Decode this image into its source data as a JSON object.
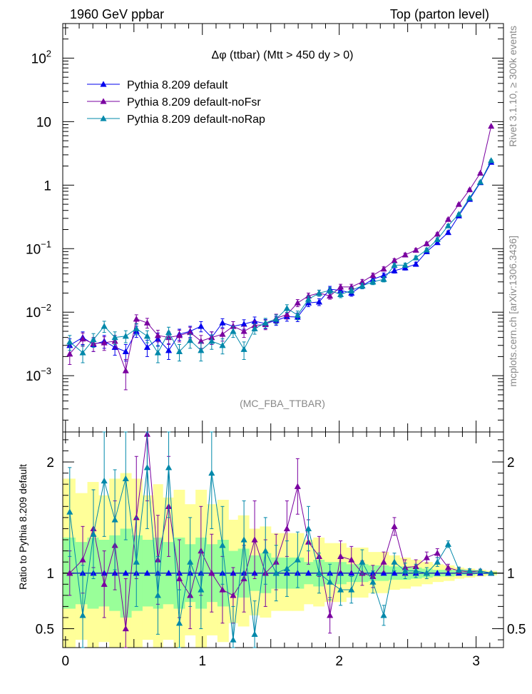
{
  "header": {
    "left": "1960 GeV ppbar",
    "right": "Top (parton level)",
    "plot_title": "Δφ (ttbar) (Mtt > 450 dy > 0)",
    "analysis_tag": "(MC_FBA_TTBAR)",
    "side_rivet": "Rivet 3.1.10, ≥ 300k events",
    "side_mcplots": "mcplots.cern.ch [arXiv:1306.3436]"
  },
  "colors": {
    "default": "#0000ee",
    "noFsr": "#7a00a0",
    "noRap": "#0088aa",
    "band_outer": "#ffff99",
    "band_inner": "#99ff99"
  },
  "chart_data": [
    {
      "type": "line",
      "panel": "main",
      "title": "Δφ (ttbar) (Mtt > 450 dy > 0)",
      "xlabel": "",
      "ylabel": "",
      "y_scale": "log",
      "xlim": [
        -0.02,
        3.2
      ],
      "ylim": [
        0.00013,
        350
      ],
      "y_ticks": [
        {
          "v": 0.001,
          "base": "10",
          "exp": "−3"
        },
        {
          "v": 0.01,
          "base": "10",
          "exp": "−2"
        },
        {
          "v": 0.1,
          "base": "10",
          "exp": "−1"
        },
        {
          "v": 1,
          "base": "1",
          "exp": ""
        },
        {
          "v": 10,
          "base": "10",
          "exp": ""
        },
        {
          "v": 100,
          "base": "10",
          "exp": "2"
        }
      ],
      "legend_position": "top-left",
      "series": [
        {
          "name": "Pythia 8.209 default",
          "color": "#0000ee",
          "x": [
            0.031,
            0.126,
            0.204,
            0.283,
            0.361,
            0.44,
            0.518,
            0.597,
            0.675,
            0.754,
            0.832,
            0.911,
            0.99,
            1.068,
            1.147,
            1.225,
            1.304,
            1.382,
            1.461,
            1.539,
            1.618,
            1.696,
            1.775,
            1.853,
            1.932,
            2.01,
            2.089,
            2.168,
            2.246,
            2.325,
            2.403,
            2.482,
            2.56,
            2.639,
            2.717,
            2.796,
            2.874,
            2.953,
            3.031,
            3.11
          ],
          "y": [
            0.003,
            0.004,
            0.0031,
            0.0035,
            0.0028,
            0.0024,
            0.005,
            0.0028,
            0.0038,
            0.0025,
            0.0045,
            0.005,
            0.006,
            0.004,
            0.0068,
            0.006,
            0.0065,
            0.0072,
            0.0066,
            0.0074,
            0.0085,
            0.0084,
            0.014,
            0.0145,
            0.023,
            0.022,
            0.02,
            0.026,
            0.033,
            0.038,
            0.045,
            0.05,
            0.057,
            0.09,
            0.125,
            0.18,
            0.33,
            0.6,
            1.1,
            2.3
          ],
          "err": [
            0.0008,
            0.0009,
            0.0007,
            0.0008,
            0.0007,
            0.0007,
            0.001,
            0.0008,
            0.0009,
            0.0007,
            0.0009,
            0.001,
            0.0011,
            0.0009,
            0.0011,
            0.0011,
            0.0011,
            0.0012,
            0.0011,
            0.0012,
            0.0013,
            0.0013,
            0.0018,
            0.0018,
            0.0025,
            0.0024,
            0.0022,
            0.0027,
            0.0031,
            0.0034,
            0.0038,
            0.004,
            0.0043,
            0.006,
            0.007,
            0.009,
            0.013,
            0.02,
            0.03,
            0.05
          ]
        },
        {
          "name": "Pythia 8.209 default-noFsr",
          "color": "#7a00a0",
          "x": [
            0.031,
            0.126,
            0.204,
            0.283,
            0.361,
            0.44,
            0.518,
            0.597,
            0.675,
            0.754,
            0.832,
            0.911,
            0.99,
            1.068,
            1.147,
            1.225,
            1.304,
            1.382,
            1.461,
            1.539,
            1.618,
            1.696,
            1.775,
            1.853,
            1.932,
            2.01,
            2.089,
            2.168,
            2.246,
            2.325,
            2.403,
            2.482,
            2.56,
            2.639,
            2.717,
            2.796,
            2.874,
            2.953,
            3.031,
            3.11
          ],
          "y": [
            0.0022,
            0.0038,
            0.0032,
            0.0033,
            0.0035,
            0.0012,
            0.0078,
            0.0068,
            0.0043,
            0.004,
            0.0043,
            0.0048,
            0.0035,
            0.004,
            0.0045,
            0.006,
            0.005,
            0.0062,
            0.0064,
            0.008,
            0.0092,
            0.014,
            0.018,
            0.02,
            0.018,
            0.025,
            0.025,
            0.03,
            0.038,
            0.048,
            0.065,
            0.08,
            0.095,
            0.12,
            0.17,
            0.29,
            0.5,
            0.85,
            1.55,
            8.5
          ],
          "err": [
            0.0007,
            0.0009,
            0.0008,
            0.0008,
            0.0008,
            0.0006,
            0.0013,
            0.0012,
            0.0009,
            0.0009,
            0.0009,
            0.001,
            0.0008,
            0.0009,
            0.001,
            0.0011,
            0.001,
            0.0011,
            0.0011,
            0.0013,
            0.0014,
            0.0018,
            0.002,
            0.0022,
            0.002,
            0.0025,
            0.0025,
            0.0028,
            0.0032,
            0.0037,
            0.0045,
            0.005,
            0.0055,
            0.007,
            0.008,
            0.011,
            0.016,
            0.025,
            0.04,
            0.1
          ]
        },
        {
          "name": "Pythia 8.209 default-noRap",
          "color": "#0088aa",
          "x": [
            0.031,
            0.126,
            0.204,
            0.283,
            0.361,
            0.44,
            0.518,
            0.597,
            0.675,
            0.754,
            0.832,
            0.911,
            0.99,
            1.068,
            1.147,
            1.225,
            1.304,
            1.382,
            1.461,
            1.539,
            1.618,
            1.696,
            1.775,
            1.853,
            1.932,
            2.01,
            2.089,
            2.168,
            2.246,
            2.325,
            2.403,
            2.482,
            2.56,
            2.639,
            2.717,
            2.796,
            2.874,
            2.953,
            3.031,
            3.11
          ],
          "y": [
            0.0034,
            0.0023,
            0.0037,
            0.006,
            0.004,
            0.0042,
            0.0055,
            0.0042,
            0.0023,
            0.0048,
            0.0024,
            0.0036,
            0.0025,
            0.0035,
            0.003,
            0.005,
            0.0026,
            0.0055,
            0.0068,
            0.0078,
            0.0115,
            0.009,
            0.016,
            0.02,
            0.022,
            0.019,
            0.022,
            0.026,
            0.03,
            0.033,
            0.055,
            0.055,
            0.072,
            0.096,
            0.14,
            0.23,
            0.35,
            0.63,
            1.12,
            2.45
          ],
          "err": [
            0.0009,
            0.0007,
            0.0009,
            0.0012,
            0.0009,
            0.0009,
            0.0011,
            0.0009,
            0.0007,
            0.001,
            0.0007,
            0.0009,
            0.0008,
            0.0009,
            0.0008,
            0.001,
            0.0008,
            0.001,
            0.0012,
            0.0013,
            0.0016,
            0.0014,
            0.0019,
            0.0022,
            0.0024,
            0.0021,
            0.0023,
            0.0026,
            0.0029,
            0.0031,
            0.004,
            0.004,
            0.0047,
            0.006,
            0.0075,
            0.01,
            0.013,
            0.02,
            0.032,
            0.055
          ]
        }
      ]
    },
    {
      "type": "line",
      "panel": "ratio",
      "xlabel": "",
      "ylabel": "Ratio to Pythia 8.209 default",
      "xlim": [
        -0.02,
        3.2
      ],
      "ylim": [
        0.33,
        2.27
      ],
      "x_ticks": [
        0,
        1,
        2,
        3
      ],
      "y_ticks": [
        0.5,
        1,
        2
      ],
      "reference_line": 1,
      "bin_edges": [
        -0.02,
        0.07,
        0.16,
        0.24,
        0.32,
        0.4,
        0.48,
        0.56,
        0.64,
        0.71,
        0.79,
        0.87,
        0.95,
        1.03,
        1.11,
        1.19,
        1.26,
        1.34,
        1.42,
        1.5,
        1.58,
        1.66,
        1.74,
        1.81,
        1.89,
        1.97,
        2.05,
        2.13,
        2.21,
        2.29,
        2.36,
        2.44,
        2.52,
        2.6,
        2.68,
        2.76,
        2.84,
        2.91,
        2.99,
        3.07,
        3.15
      ],
      "band_inner": {
        "lo": [
          0.68,
          0.72,
          0.68,
          0.7,
          0.66,
          0.6,
          0.66,
          0.7,
          0.68,
          0.72,
          0.68,
          0.74,
          0.68,
          0.74,
          0.7,
          0.8,
          0.78,
          0.84,
          0.82,
          0.86,
          0.86,
          0.86,
          0.9,
          0.88,
          0.9,
          0.9,
          0.92,
          0.92,
          0.93,
          0.93,
          0.94,
          0.94,
          0.95,
          0.96,
          0.97,
          0.97,
          0.98,
          0.98,
          0.99,
          0.99
        ],
        "hi": [
          1.32,
          1.28,
          1.32,
          1.3,
          1.34,
          1.4,
          1.34,
          1.3,
          1.32,
          1.28,
          1.32,
          1.26,
          1.32,
          1.26,
          1.3,
          1.2,
          1.22,
          1.16,
          1.18,
          1.14,
          1.14,
          1.14,
          1.1,
          1.12,
          1.1,
          1.1,
          1.08,
          1.08,
          1.07,
          1.07,
          1.06,
          1.06,
          1.05,
          1.04,
          1.03,
          1.03,
          1.02,
          1.02,
          1.01,
          1.01
        ]
      },
      "band_outer": {
        "lo": [
          0.33,
          0.4,
          0.33,
          0.38,
          0.33,
          0.33,
          0.33,
          0.4,
          0.33,
          0.4,
          0.33,
          0.44,
          0.33,
          0.44,
          0.38,
          0.55,
          0.52,
          0.62,
          0.6,
          0.66,
          0.66,
          0.66,
          0.72,
          0.7,
          0.74,
          0.74,
          0.78,
          0.78,
          0.82,
          0.82,
          0.85,
          0.86,
          0.88,
          0.9,
          0.92,
          0.93,
          0.95,
          0.96,
          0.97,
          0.98
        ],
        "hi": [
          1.85,
          1.72,
          1.82,
          1.7,
          1.85,
          1.9,
          1.85,
          1.7,
          1.8,
          1.68,
          1.75,
          1.62,
          1.75,
          1.62,
          1.66,
          1.48,
          1.52,
          1.4,
          1.42,
          1.36,
          1.36,
          1.36,
          1.3,
          1.32,
          1.27,
          1.27,
          1.23,
          1.23,
          1.19,
          1.19,
          1.16,
          1.14,
          1.12,
          1.1,
          1.08,
          1.07,
          1.05,
          1.04,
          1.03,
          1.02
        ]
      },
      "series": [
        {
          "name": "Pythia 8.209 default",
          "color": "#0000ee",
          "x": [
            0.031,
            0.126,
            0.204,
            0.283,
            0.361,
            0.44,
            0.518,
            0.597,
            0.675,
            0.754,
            0.832,
            0.911,
            0.99,
            1.068,
            1.147,
            1.225,
            1.304,
            1.382,
            1.461,
            1.539,
            1.618,
            1.696,
            1.775,
            1.853,
            1.932,
            2.01,
            2.089,
            2.168,
            2.246,
            2.325,
            2.403,
            2.482,
            2.56,
            2.639,
            2.717,
            2.796,
            2.874,
            2.953,
            3.031,
            3.11
          ],
          "y": [
            1,
            1,
            1,
            1,
            1,
            1,
            1,
            1,
            1,
            1,
            1,
            1,
            1,
            1,
            1,
            1,
            1,
            1,
            1,
            1,
            1,
            1,
            1,
            1,
            1,
            1,
            1,
            1,
            1,
            1,
            1,
            1,
            1,
            1,
            1,
            1,
            1,
            1,
            1,
            1
          ]
        },
        {
          "name": "Pythia 8.209 default-noFsr",
          "color": "#7a00a0",
          "x": [
            0.031,
            0.126,
            0.204,
            0.283,
            0.361,
            0.44,
            0.518,
            0.597,
            0.675,
            0.754,
            0.832,
            0.911,
            0.99,
            1.068,
            1.147,
            1.225,
            1.304,
            1.382,
            1.461,
            1.539,
            1.618,
            1.696,
            1.775,
            1.853,
            1.932,
            2.01,
            2.089,
            2.168,
            2.246,
            2.325,
            2.403,
            2.482,
            2.56,
            2.639,
            2.717,
            2.796,
            2.874,
            2.953,
            3.031,
            3.11
          ],
          "y": [
            1.0,
            1.12,
            1.4,
            0.9,
            1.25,
            0.5,
            1.5,
            2.25,
            1.12,
            1.6,
            0.95,
            0.8,
            1.2,
            1.0,
            0.85,
            0.8,
            0.95,
            1.3,
            1.0,
            1.1,
            1.4,
            1.78,
            1.28,
            1.15,
            0.62,
            1.15,
            1.12,
            1.0,
            0.97,
            1.1,
            1.42,
            1.05,
            1.06,
            1.14,
            1.18,
            1.05,
            1.02,
            1.01,
            1.02,
            1.0
          ],
          "err": [
            0.2,
            0.3,
            0.35,
            0.3,
            0.4,
            0.45,
            0.55,
            0.6,
            0.4,
            0.45,
            0.35,
            0.3,
            0.4,
            0.35,
            0.3,
            0.25,
            0.3,
            0.35,
            0.3,
            0.25,
            0.25,
            0.25,
            0.2,
            0.18,
            0.16,
            0.14,
            0.12,
            0.11,
            0.1,
            0.09,
            0.08,
            0.07,
            0.06,
            0.05,
            0.04,
            0.03,
            0.025,
            0.02,
            0.015,
            0.01
          ]
        },
        {
          "name": "Pythia 8.209 default-noRap",
          "color": "#0088aa",
          "x": [
            0.031,
            0.126,
            0.204,
            0.283,
            0.361,
            0.44,
            0.518,
            0.597,
            0.675,
            0.754,
            0.832,
            0.911,
            0.99,
            1.068,
            1.147,
            1.225,
            1.304,
            1.382,
            1.461,
            1.539,
            1.618,
            1.696,
            1.775,
            1.853,
            1.932,
            2.01,
            2.089,
            2.168,
            2.246,
            2.325,
            2.403,
            2.482,
            2.56,
            2.639,
            2.717,
            2.796,
            2.874,
            2.953,
            3.031,
            3.11
          ],
          "y": [
            1.55,
            0.62,
            1.35,
            1.83,
            1.48,
            1.85,
            1.1,
            1.95,
            0.8,
            1.95,
            0.55,
            1.1,
            0.85,
            1.9,
            1.25,
            0.4,
            1.3,
            0.45,
            1.2,
            1.0,
            1.04,
            1.12,
            1.4,
            1.0,
            0.92,
            0.85,
            0.85,
            1.1,
            0.92,
            0.62,
            1.1,
            1.02,
            1.02,
            1.0,
            1.1,
            1.26,
            1.03,
            1.02,
            1.02,
            1.0
          ],
          "err": [
            0.4,
            0.45,
            0.4,
            0.5,
            0.45,
            0.55,
            0.4,
            0.55,
            0.35,
            0.45,
            0.3,
            0.4,
            0.35,
            0.5,
            0.35,
            0.3,
            0.35,
            0.3,
            0.3,
            0.25,
            0.25,
            0.25,
            0.2,
            0.18,
            0.16,
            0.14,
            0.12,
            0.11,
            0.1,
            0.09,
            0.08,
            0.07,
            0.06,
            0.05,
            0.04,
            0.03,
            0.025,
            0.02,
            0.015,
            0.01
          ]
        }
      ]
    }
  ]
}
